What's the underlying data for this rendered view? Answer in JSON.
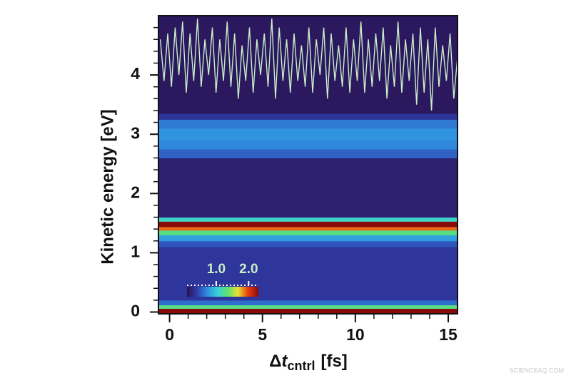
{
  "chart_data": {
    "type": "heatmap",
    "y_label": "Kinetic energy [eV]",
    "x_label_parts": [
      "Δ",
      "t",
      "cntrl",
      "[fs]"
    ],
    "xlim": [
      -0.6,
      15.5
    ],
    "ylim": [
      -0.03,
      5.0
    ],
    "xticks": [
      0,
      5,
      10,
      15
    ],
    "yticks": [
      0,
      1,
      2,
      3,
      4
    ],
    "x_minor_ticks": [
      0,
      1,
      2,
      3,
      4,
      5,
      6,
      7,
      8,
      9,
      10,
      11,
      12,
      13,
      14,
      15
    ],
    "y_minor_ticks": [
      0,
      0.2,
      0.4,
      0.6,
      0.8,
      1,
      1.2,
      1.4,
      1.6,
      1.8,
      2,
      2.2,
      2.4,
      2.6,
      2.8,
      3,
      3.2,
      3.4,
      3.6,
      3.8,
      4,
      4.2,
      4.4,
      4.6,
      4.8
    ],
    "heatmap": {
      "energy_edges": [
        -0.05,
        0.06,
        0.12,
        0.2,
        1.1,
        1.2,
        1.3,
        1.38,
        1.44,
        1.53,
        1.6,
        2.6,
        2.75,
        2.9,
        3.1,
        3.25,
        3.35,
        5.0
      ],
      "counts": [
        2.3,
        1.3,
        0.6,
        0.35,
        0.5,
        0.8,
        1.3,
        1.9,
        2.3,
        1.1,
        0.2,
        0.55,
        0.7,
        0.75,
        0.65,
        0.35,
        0.15
      ]
    },
    "colormap": [
      "#2c1150",
      "#2f3fae",
      "#2f8fe0",
      "#38d0d8",
      "#5fe070",
      "#e8e030",
      "#e83a10",
      "#8a0a0a"
    ],
    "clim": [
      0.1,
      2.3
    ],
    "colorbar_ticks": [
      {
        "value": 1,
        "label": "1.0"
      },
      {
        "value": 2,
        "label": "2.0"
      }
    ],
    "trace": {
      "color": "#c8efc8",
      "x": [
        -0.5,
        -0.3,
        -0.1,
        0.1,
        0.3,
        0.5,
        0.7,
        0.9,
        1.1,
        1.3,
        1.5,
        1.7,
        1.9,
        2.1,
        2.3,
        2.5,
        2.7,
        2.9,
        3.1,
        3.3,
        3.5,
        3.7,
        3.9,
        4.1,
        4.3,
        4.5,
        4.7,
        4.9,
        5.1,
        5.3,
        5.5,
        5.7,
        5.9,
        6.1,
        6.3,
        6.5,
        6.7,
        6.9,
        7.1,
        7.3,
        7.5,
        7.7,
        7.9,
        8.1,
        8.3,
        8.5,
        8.7,
        8.9,
        9.1,
        9.3,
        9.5,
        9.7,
        9.9,
        10.1,
        10.3,
        10.5,
        10.7,
        10.9,
        11.1,
        11.3,
        11.5,
        11.7,
        11.9,
        12.1,
        12.3,
        12.5,
        12.7,
        12.9,
        13.1,
        13.3,
        13.5,
        13.7,
        13.9,
        14.1,
        14.3,
        14.5,
        14.7,
        14.9,
        15.1,
        15.3,
        15.5
      ],
      "values": [
        4.6,
        3.9,
        4.7,
        3.8,
        4.8,
        4.0,
        4.9,
        3.7,
        4.7,
        3.9,
        4.95,
        3.8,
        4.6,
        4.0,
        4.8,
        3.7,
        4.6,
        3.9,
        4.9,
        3.8,
        4.7,
        3.6,
        4.5,
        3.9,
        4.8,
        3.7,
        4.6,
        4.0,
        4.7,
        3.8,
        4.95,
        3.6,
        4.8,
        3.9,
        4.6,
        3.7,
        4.7,
        3.9,
        4.5,
        3.8,
        4.8,
        3.7,
        4.6,
        4.0,
        4.8,
        3.6,
        4.7,
        3.9,
        4.5,
        3.8,
        4.8,
        3.7,
        4.6,
        3.9,
        4.9,
        3.7,
        4.6,
        3.8,
        4.7,
        3.9,
        4.8,
        3.6,
        4.5,
        3.8,
        4.9,
        3.7,
        4.6,
        3.9,
        4.7,
        3.5,
        4.8,
        3.7,
        4.6,
        3.4,
        4.8,
        3.8,
        4.5,
        3.9,
        4.7,
        3.6,
        4.3
      ]
    },
    "watermark": "SCIENCEAQ.COM"
  }
}
